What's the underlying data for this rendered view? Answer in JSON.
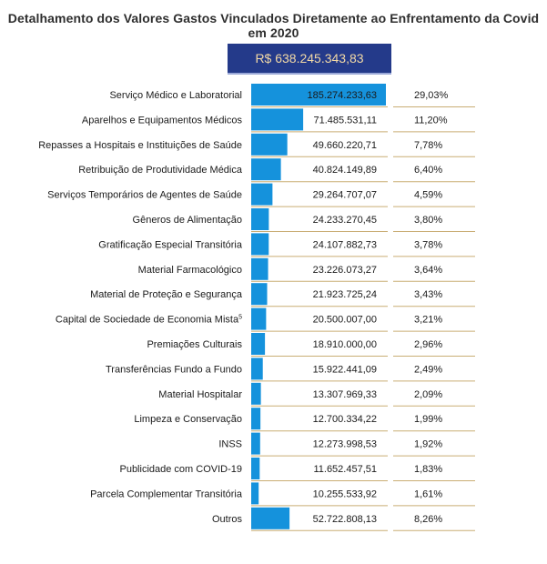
{
  "chart_data": {
    "type": "bar",
    "orientation": "horizontal",
    "title": "Detalhamento dos Valores Gastos Vinculados Diretamente ao Enfrentamento da Covid em 2020",
    "total_label": "R$ 638.245.343,83",
    "bar_color": "#1592dc",
    "categories": [
      "Serviço Médico e Laboratorial",
      "Aparelhos e Equipamentos Médicos",
      "Repasses a Hospitais e Instituições de Saúde",
      "Retribuição de Produtividade Médica",
      "Serviços Temporários de Agentes de Saúde",
      "Gêneros de Alimentação",
      "Gratificação Especial Transitória",
      "Material Farmacológico",
      "Material de Proteção e Segurança",
      "Capital de Sociedade de Economia Mista",
      "Premiações Culturais",
      "Transferências Fundo a Fundo",
      "Material Hospitalar",
      "Limpeza e Conservação",
      "INSS",
      "Publicidade com COVID-19",
      "Parcela Complementar Transitória",
      "Outros"
    ],
    "footnote_marks": [
      "",
      "",
      "",
      "",
      "",
      "",
      "",
      "",
      "",
      "5",
      "",
      "",
      "",
      "",
      "",
      "",
      "",
      ""
    ],
    "values": [
      185274233.63,
      71485531.11,
      49660220.71,
      40824149.89,
      29264707.07,
      24233270.45,
      24107882.73,
      23226073.27,
      21923725.24,
      20500007.0,
      18910000.0,
      15922441.09,
      13307969.33,
      12700334.22,
      12273998.53,
      11652457.51,
      10255533.92,
      52722808.13
    ],
    "value_labels": [
      "185.274.233,63",
      "71.485.531,11",
      "49.660.220,71",
      "40.824.149,89",
      "29.264.707,07",
      "24.233.270,45",
      "24.107.882,73",
      "23.226.073,27",
      "21.923.725,24",
      "20.500.007,00",
      "18.910.000,00",
      "15.922.441,09",
      "13.307.969,33",
      "12.700.334,22",
      "12.273.998,53",
      "11.652.457,51",
      "10.255.533,92",
      "52.722.808,13"
    ],
    "percent_labels": [
      "29,03%",
      "11,20%",
      "7,78%",
      "6,40%",
      "4,59%",
      "3,80%",
      "3,78%",
      "3,64%",
      "3,43%",
      "3,21%",
      "2,96%",
      "2,49%",
      "2,09%",
      "1,99%",
      "1,92%",
      "1,83%",
      "1,61%",
      "8,26%"
    ]
  }
}
